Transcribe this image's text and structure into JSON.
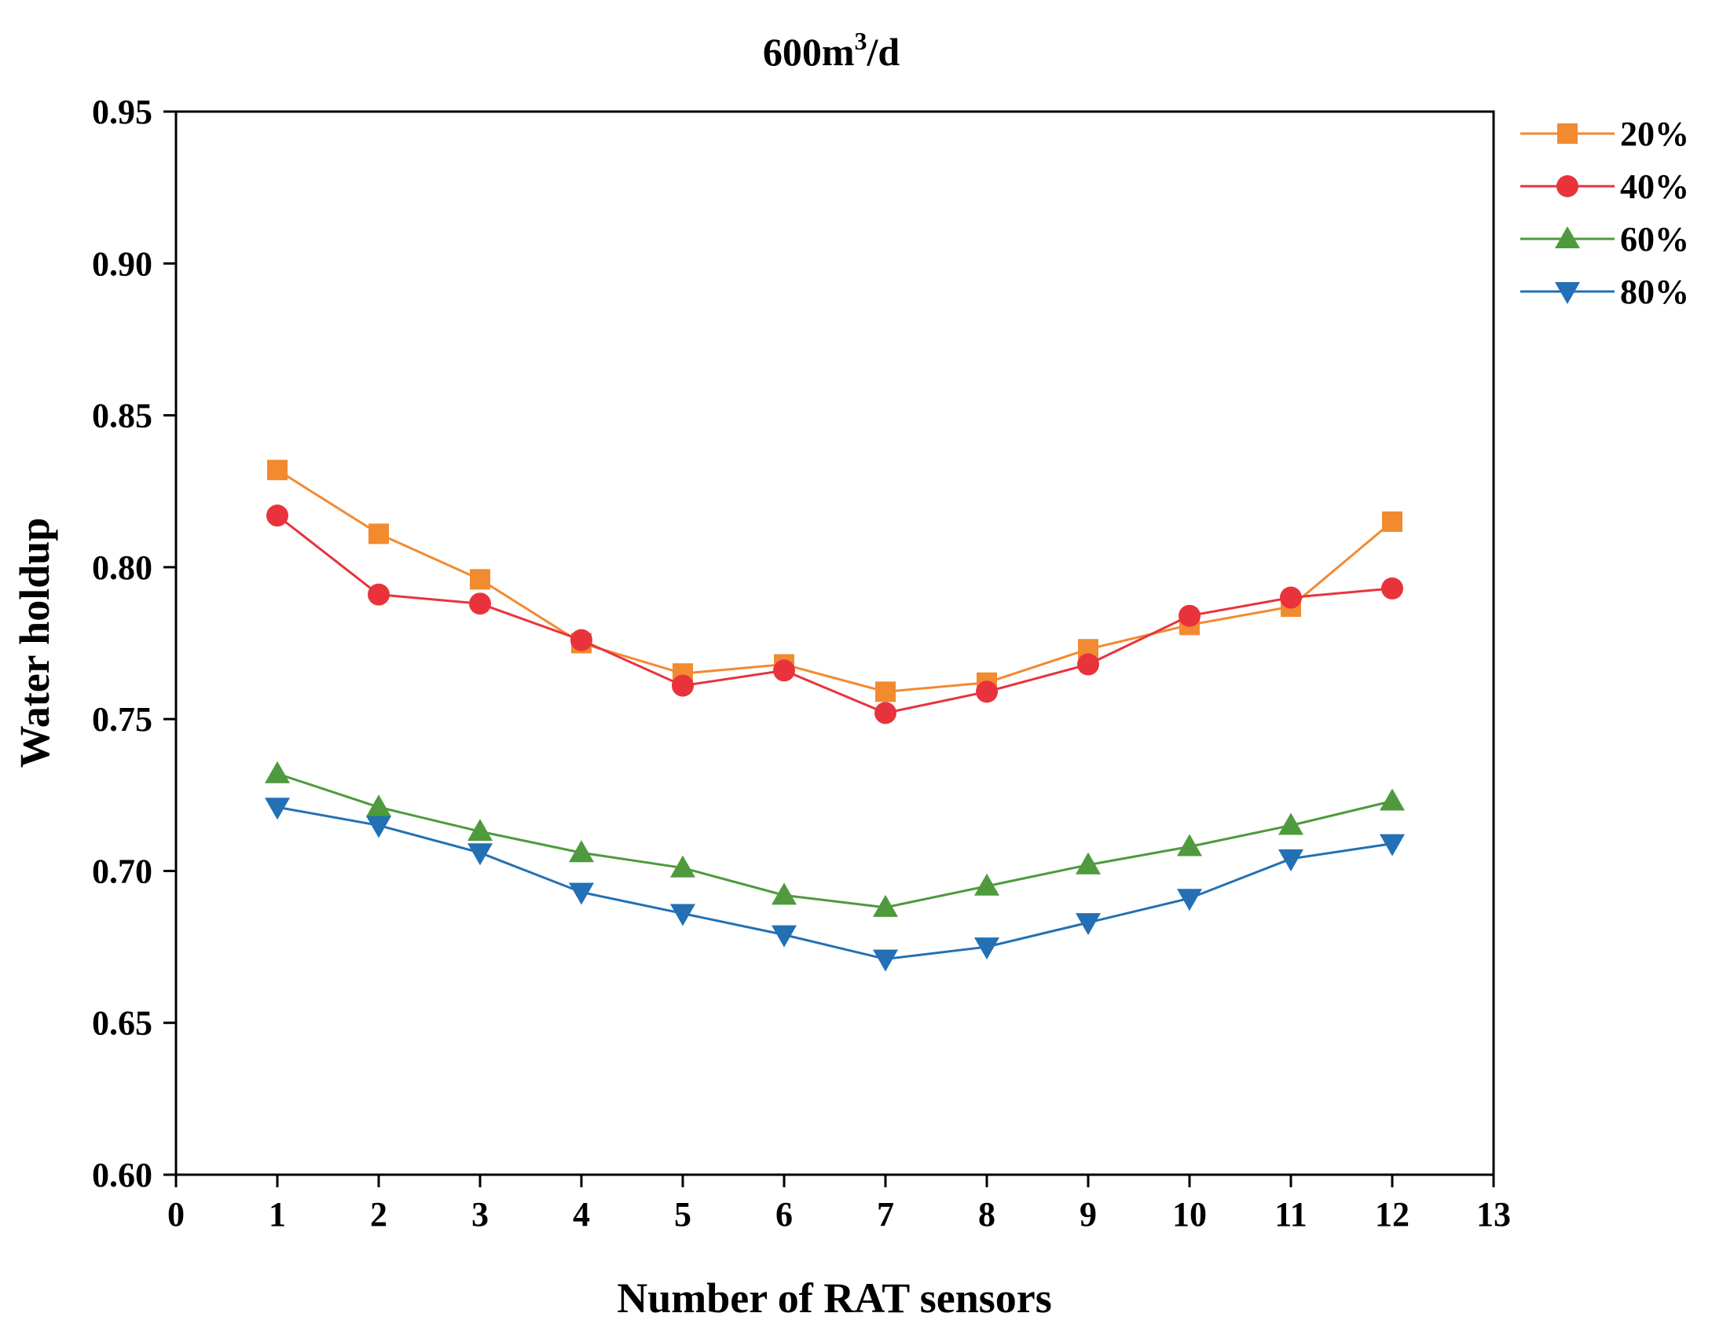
{
  "chart_data": {
    "type": "line",
    "title_main": "600m",
    "title_sup": "3",
    "title_tail": "/d",
    "xlabel": "Number of RAT sensors",
    "ylabel": "Water holdup",
    "xlim": [
      0,
      13
    ],
    "ylim": [
      0.6,
      0.95
    ],
    "x_ticks": [
      "0",
      "1",
      "2",
      "3",
      "4",
      "5",
      "6",
      "7",
      "8",
      "9",
      "10",
      "11",
      "12",
      "13"
    ],
    "y_ticks": [
      "0.60",
      "0.65",
      "0.70",
      "0.75",
      "0.80",
      "0.85",
      "0.90",
      "0.95"
    ],
    "grid": false,
    "legend_position": "right-top, outside plot",
    "x": [
      1,
      2,
      3,
      4,
      5,
      6,
      7,
      8,
      9,
      10,
      11,
      12
    ],
    "series": [
      {
        "name": "20%",
        "color": "#F28A30",
        "marker": "square",
        "values": [
          0.832,
          0.811,
          0.796,
          0.775,
          0.765,
          0.768,
          0.759,
          0.762,
          0.773,
          0.781,
          0.787,
          0.815
        ]
      },
      {
        "name": "40%",
        "color": "#E8333D",
        "marker": "circle",
        "values": [
          0.817,
          0.791,
          0.788,
          0.776,
          0.761,
          0.766,
          0.752,
          0.759,
          0.768,
          0.784,
          0.79,
          0.793
        ]
      },
      {
        "name": "60%",
        "color": "#4E9A3C",
        "marker": "triangle-up",
        "values": [
          0.732,
          0.721,
          0.713,
          0.706,
          0.701,
          0.692,
          0.688,
          0.695,
          0.702,
          0.708,
          0.715,
          0.723
        ]
      },
      {
        "name": "80%",
        "color": "#2370B4",
        "marker": "triangle-down",
        "values": [
          0.721,
          0.715,
          0.706,
          0.693,
          0.686,
          0.679,
          0.671,
          0.675,
          0.683,
          0.691,
          0.704,
          0.709
        ]
      }
    ]
  }
}
